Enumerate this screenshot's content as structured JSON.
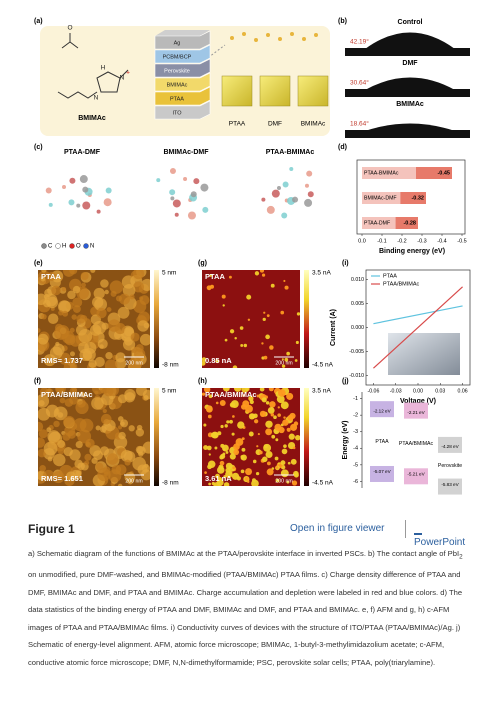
{
  "figure": {
    "a": {
      "label": "(a)",
      "structure_labels": [
        "O",
        "H",
        "N",
        "+",
        "N"
      ],
      "molecule": "BMIMAc",
      "layers": [
        "Ag",
        "PCBM/BCP",
        "Perovskite",
        "BMIMAc",
        "PTAA",
        "ITO"
      ],
      "films": [
        "PTAA",
        "DMF",
        "BMIMAc"
      ]
    },
    "b": {
      "label": "(b)",
      "samples": [
        {
          "name": "Control",
          "angle": "42.19°"
        },
        {
          "name": "DMF",
          "angle": "30.64°"
        },
        {
          "name": "BMIMAc",
          "angle": "18.64°"
        }
      ]
    },
    "c": {
      "label": "(c)",
      "titles": [
        "PTAA-DMF",
        "BMIMAc-DMF",
        "PTAA-BMIMAc"
      ],
      "atoms": [
        "C",
        "H",
        "O",
        "N"
      ]
    },
    "d": {
      "label": "(d)",
      "chart": {
        "type": "bar",
        "categories": [
          "PTAA-BMIMAc",
          "BMIMAc-DMF",
          "PTAA-DMF"
        ],
        "values": [
          -0.45,
          -0.32,
          -0.28
        ],
        "color": "#e46b5a",
        "xlabel": "Binding energy (eV)",
        "xlim": [
          0,
          -0.5
        ],
        "xticks": [
          {
            "value": 0,
            "label": "0.0"
          },
          -0.1,
          -0.2,
          -0.3,
          -0.4,
          -0.5
        ]
      }
    },
    "e": {
      "label": "(e)",
      "name": "PTAA",
      "note": "RMS= 1.737",
      "scale": "200 nm",
      "cbar_max": "5 nm",
      "cbar_min": "-8 nm"
    },
    "f": {
      "label": "(f)",
      "name": "PTAA/BMIMAc",
      "note": "RMS= 1.651",
      "scale": "200 nm",
      "cbar_max": "5 nm",
      "cbar_min": "-8 nm"
    },
    "g": {
      "label": "(g)",
      "name": "PTAA",
      "note": "0.85 nA",
      "scale": "200 nm",
      "cbar_max": "3.5 nA",
      "cbar_min": "-4.5 nA"
    },
    "h": {
      "label": "(h)",
      "name": "PTAA/BMIMAc",
      "note": "3.61 nA",
      "scale": "200 nm",
      "cbar_max": "3.5 nA",
      "cbar_min": "-4.5 nA"
    },
    "i": {
      "label": "(i)",
      "chart": {
        "type": "line",
        "xlabel": "Voltage (V)",
        "ylabel": "Current (A)",
        "x": [
          -0.06,
          0.06
        ],
        "series": [
          {
            "name": "PTAA",
            "color": "#5fc3df",
            "values": [
              0.0008,
              0.0045
            ]
          },
          {
            "name": "PTAA/BMIMAc",
            "color": "#d84b4b",
            "values": [
              -0.0085,
              0.0085
            ]
          }
        ],
        "xlim": [
          -0.07,
          0.07
        ],
        "ylim": [
          -0.012,
          0.012
        ],
        "xticks": [
          -0.06,
          -0.03,
          {
            "value": 0,
            "label": "0.00"
          },
          0.03,
          0.06
        ],
        "yticks": [
          {
            "value": 0.01,
            "label": "0.010"
          },
          {
            "value": 0.005,
            "label": "0.005"
          },
          {
            "value": 0,
            "label": "0.000"
          },
          {
            "value": -0.005,
            "label": "-0.005"
          },
          {
            "value": -0.01,
            "label": "-0.010"
          }
        ],
        "legend": "upper left"
      }
    },
    "j": {
      "label": "(j)",
      "chart": {
        "type": "energy-level",
        "ylabel": "Energy (eV)",
        "categories": [
          "PTAA",
          "PTAA/BMIMAc",
          "Perovskite"
        ],
        "colors": [
          "#c7b3e3",
          "#eab6d9",
          "#d2d2d2"
        ],
        "lumo": [
          -2.12,
          -2.21,
          -4.28
        ],
        "lumo_labels": [
          "-2.12 eV",
          "-2.21 eV",
          "-4.28 eV"
        ],
        "homo": [
          -5.07,
          -5.21,
          -5.83
        ],
        "homo_labels": [
          "-5.07 eV",
          "-5.21 eV",
          "-5.83 eV"
        ],
        "ylim": [
          -6.4,
          -0.6
        ],
        "yticks": [
          -1,
          -2,
          -3,
          -4,
          -5,
          -6
        ]
      }
    },
    "heading": "Figure 1",
    "viewer_link": "Open in figure viewer",
    "powerpoint_link": "PowerPoint",
    "caption": {
      "before": "a) Schematic diagram of the functions of BMIMAc at the PTAA/perovskite interface in inverted PSCs. b) The contact angle of PbI",
      "sub": "2",
      "after": " on unmodified, pure DMF-washed, and BMIMAc-modified (PTAA/BMIMAc) PTAA films. c) Charge density difference of PTAA and DMF, BMIMAc and DMF, and PTAA and BMIMAc. Charge accumulation and depletion were labeled in red and blue colors. d) The data statistics of the binding energy of PTAA and DMF, BMIMAc and DMF, and PTAA and BMIMAc. e, f) AFM and g, h) c-AFM images of PTAA and PTAA/BMIMAc films. i) Conductivity curves of devices with the structure of ITO/PTAA (PTAA/BMIMAc)/Ag. j) Schematic of energy-level alignment. AFM, atomic force microscope; BMIMAc, 1-butyl-3-methylimidazolium acetate; c-AFM, conductive atomic force microscope; DMF, N,N-dimethylformamide; PSC, perovskite solar cells; PTAA, poly(triarylamine)."
    }
  }
}
